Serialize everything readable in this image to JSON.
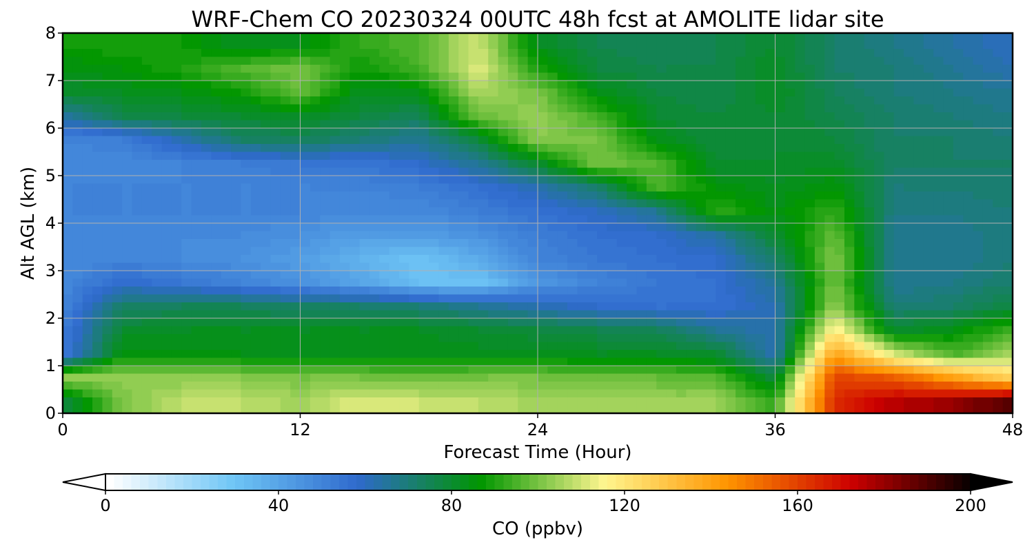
{
  "chart_data": {
    "type": "heatmap",
    "title": "WRF-Chem CO  20230324 00UTC 48h fcst at AMOLITE lidar site",
    "xlabel": "Forecast Time (Hour)",
    "ylabel": "Alt AGL (km)",
    "xlim": [
      0,
      48
    ],
    "ylim": [
      0,
      8
    ],
    "xticks": [
      "0",
      "12",
      "24",
      "36",
      "48"
    ],
    "yticks": [
      "0",
      "1",
      "2",
      "3",
      "4",
      "5",
      "6",
      "7",
      "8"
    ],
    "grid": true,
    "x": [
      0,
      3,
      6,
      9,
      12,
      15,
      18,
      21,
      24,
      27,
      30,
      33,
      36,
      39,
      42,
      45,
      48
    ],
    "y": [
      0.25,
      0.75,
      1.25,
      1.75,
      2.25,
      2.75,
      3.25,
      3.75,
      4.25,
      4.75,
      5.25,
      5.75,
      6.25,
      6.75,
      7.25,
      7.75
    ],
    "z": [
      [
        78,
        100,
        108,
        108,
        105,
        112,
        110,
        108,
        105,
        104,
        104,
        105,
        92,
        165,
        175,
        180,
        190
      ],
      [
        102,
        104,
        102,
        102,
        100,
        100,
        98,
        100,
        100,
        98,
        98,
        96,
        78,
        160,
        155,
        140,
        125
      ],
      [
        52,
        86,
        84,
        84,
        83,
        83,
        83,
        83,
        83,
        82,
        82,
        80,
        62,
        140,
        110,
        95,
        105
      ],
      [
        52,
        80,
        82,
        82,
        82,
        82,
        82,
        80,
        78,
        76,
        74,
        66,
        62,
        118,
        80,
        84,
        94
      ],
      [
        50,
        72,
        74,
        74,
        72,
        72,
        70,
        66,
        62,
        58,
        56,
        56,
        62,
        104,
        70,
        72,
        78
      ],
      [
        48,
        58,
        54,
        50,
        46,
        40,
        32,
        30,
        44,
        50,
        54,
        56,
        66,
        100,
        66,
        68,
        72
      ],
      [
        48,
        50,
        48,
        46,
        42,
        36,
        30,
        38,
        50,
        54,
        56,
        58,
        72,
        102,
        66,
        66,
        70
      ],
      [
        50,
        48,
        48,
        48,
        46,
        42,
        42,
        46,
        52,
        56,
        58,
        64,
        80,
        98,
        66,
        66,
        70
      ],
      [
        50,
        50,
        50,
        50,
        50,
        48,
        48,
        52,
        56,
        60,
        66,
        92,
        84,
        92,
        68,
        68,
        70
      ],
      [
        50,
        50,
        50,
        50,
        50,
        50,
        52,
        56,
        62,
        72,
        95,
        86,
        82,
        86,
        70,
        70,
        72
      ],
      [
        48,
        48,
        50,
        52,
        54,
        54,
        58,
        66,
        80,
        100,
        96,
        80,
        80,
        82,
        72,
        72,
        72
      ],
      [
        50,
        52,
        62,
        72,
        74,
        70,
        66,
        78,
        102,
        100,
        84,
        78,
        80,
        78,
        72,
        72,
        70
      ],
      [
        64,
        76,
        78,
        80,
        82,
        78,
        74,
        98,
        104,
        94,
        80,
        78,
        80,
        76,
        72,
        70,
        68
      ],
      [
        80,
        82,
        84,
        88,
        98,
        82,
        84,
        106,
        100,
        84,
        78,
        76,
        82,
        74,
        70,
        68,
        66
      ],
      [
        84,
        86,
        90,
        96,
        100,
        88,
        94,
        112,
        90,
        78,
        76,
        76,
        82,
        72,
        70,
        66,
        62
      ],
      [
        88,
        90,
        88,
        82,
        84,
        92,
        96,
        110,
        82,
        76,
        74,
        76,
        80,
        72,
        68,
        64,
        60
      ]
    ],
    "colorbar": {
      "label": "CO  (ppbv)",
      "min": 0,
      "max": 200,
      "ticks": [
        "0",
        "40",
        "80",
        "120",
        "160",
        "200"
      ],
      "extend": "both",
      "colors": [
        "#ffffff",
        "#6fc6f6",
        "#2f6acd",
        "#009600",
        "#fff68f",
        "#ff9400",
        "#cc0000",
        "#000000"
      ]
    }
  }
}
